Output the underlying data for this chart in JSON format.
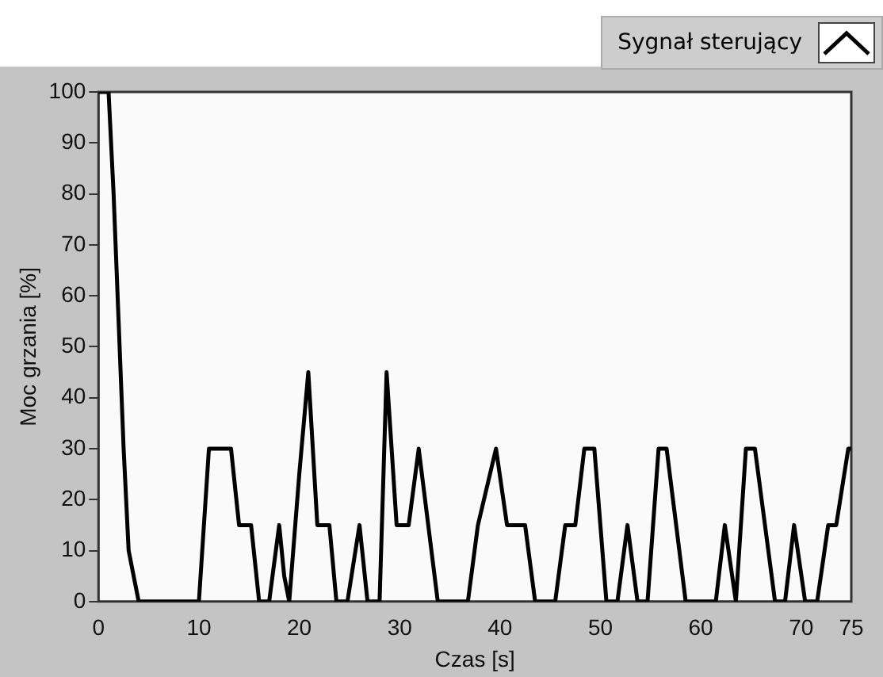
{
  "chart_data": {
    "type": "line",
    "xlabel": "Czas [s]",
    "ylabel": "Moc grzania [%]",
    "xlim": [
      0,
      75
    ],
    "xticks": [
      0,
      10,
      20,
      30,
      40,
      50,
      60,
      70,
      75
    ],
    "ylim": [
      0,
      100
    ],
    "yticks": [
      0,
      10,
      20,
      30,
      40,
      50,
      60,
      70,
      80,
      90,
      100
    ],
    "grid": false,
    "legend": "top right",
    "marker": "none",
    "line_style": "solid",
    "series": [
      {
        "name": "Sygnał sterujący",
        "color": "#000000",
        "x": [
          0,
          1,
          1.5,
          2,
          2.5,
          3,
          3.5,
          4,
          10,
          11,
          13.2,
          14,
          15.2,
          16,
          17,
          18,
          18.5,
          19,
          20,
          20.9,
          21.8,
          23,
          23.7,
          24.8,
          26,
          26.8,
          28,
          28.7,
          29.7,
          30.9,
          31.9,
          33.8,
          36.8,
          37.8,
          39.6,
          40.7,
          42.5,
          43.5,
          45.5,
          46.5,
          47.5,
          48.4,
          49.4,
          50.6,
          51.7,
          52.7,
          53.7,
          54.7,
          55.8,
          56.6,
          58.5,
          61.5,
          62.4,
          63.5,
          64.5,
          65.4,
          67.4,
          68.4,
          69.3,
          70.4,
          71.6,
          72.7,
          73.5,
          74.7,
          75
        ],
        "values": [
          100,
          100,
          80,
          55,
          30,
          10,
          5,
          0,
          0,
          30,
          30,
          15,
          15,
          0,
          0,
          15,
          5,
          0,
          25,
          45,
          15,
          15,
          0,
          0,
          15,
          0,
          0,
          45,
          15,
          15,
          30,
          0,
          0,
          15,
          30,
          15,
          15,
          0,
          0,
          15,
          15,
          30,
          30,
          0,
          0,
          15,
          0,
          0,
          30,
          30,
          0,
          0,
          15,
          0,
          30,
          30,
          0,
          0,
          15,
          0,
          0,
          15,
          15,
          30,
          30
        ]
      }
    ]
  }
}
